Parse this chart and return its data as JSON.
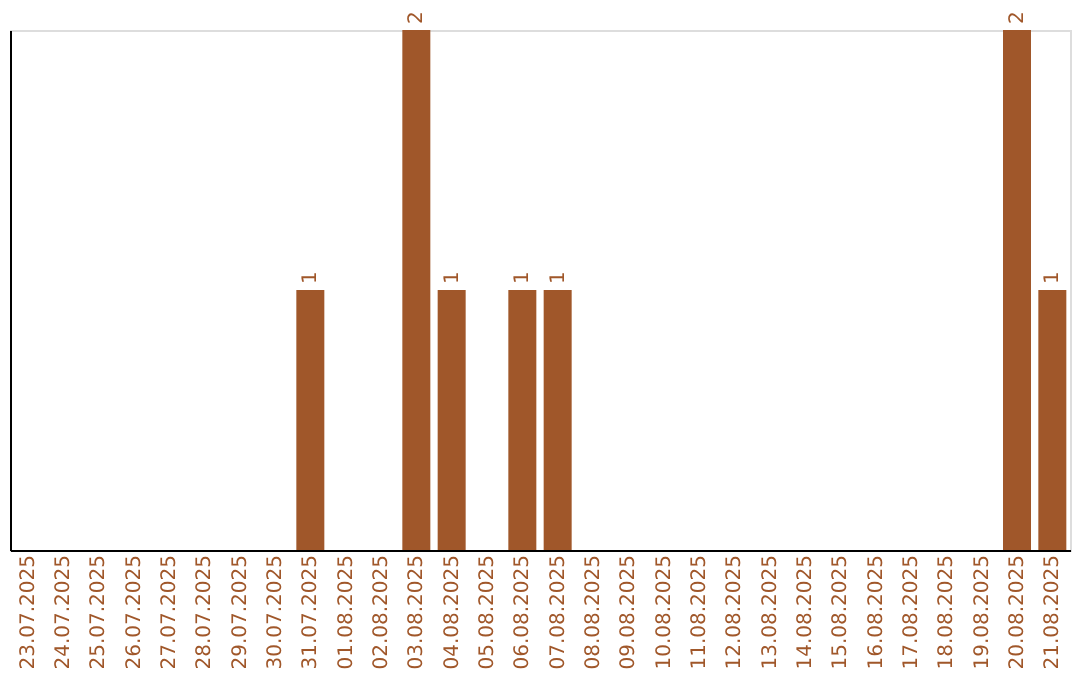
{
  "chart_data": {
    "type": "bar",
    "categories": [
      "23.07.2025",
      "24.07.2025",
      "25.07.2025",
      "26.07.2025",
      "27.07.2025",
      "28.07.2025",
      "29.07.2025",
      "30.07.2025",
      "31.07.2025",
      "01.08.2025",
      "02.08.2025",
      "03.08.2025",
      "04.08.2025",
      "05.08.2025",
      "06.08.2025",
      "07.08.2025",
      "08.08.2025",
      "09.08.2025",
      "10.08.2025",
      "11.08.2025",
      "12.08.2025",
      "13.08.2025",
      "14.08.2025",
      "15.08.2025",
      "16.08.2025",
      "17.08.2025",
      "18.08.2025",
      "19.08.2025",
      "20.08.2025",
      "21.08.2025"
    ],
    "values": [
      0,
      0,
      0,
      0,
      0,
      0,
      0,
      0,
      1,
      0,
      0,
      2,
      1,
      0,
      1,
      1,
      0,
      0,
      0,
      0,
      0,
      0,
      0,
      0,
      0,
      0,
      0,
      0,
      2,
      1
    ],
    "value_labels": [
      null,
      null,
      null,
      null,
      null,
      null,
      null,
      null,
      "1",
      null,
      null,
      "2",
      "1",
      null,
      "1",
      "1",
      null,
      null,
      null,
      null,
      null,
      null,
      null,
      null,
      null,
      null,
      null,
      null,
      "2",
      "1"
    ],
    "color": "#a0572a",
    "tick_labels": "x",
    "grid": false
  }
}
